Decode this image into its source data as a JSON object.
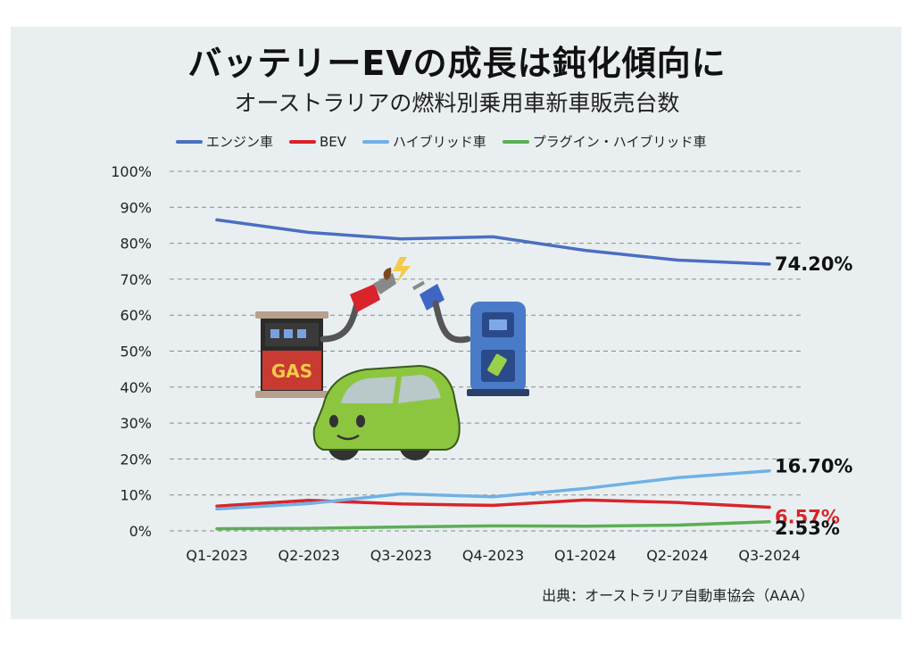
{
  "title": "バッテリーEVの成長は鈍化傾向に",
  "subtitle": "オーストラリアの燃料別乗用車新車販売台数",
  "source": "出典：オーストラリア自動車協会（AAA）",
  "illustration": {
    "gas_pump_label": "GAS"
  },
  "chart_data": {
    "type": "line",
    "categories": [
      "Q1-2023",
      "Q2-2023",
      "Q3-2023",
      "Q4-2023",
      "Q1-2024",
      "Q2-2024",
      "Q3-2024"
    ],
    "ylim": [
      0,
      100
    ],
    "yticks": [
      "0%",
      "10%",
      "20%",
      "30%",
      "40%",
      "50%",
      "60%",
      "70%",
      "80%",
      "90%",
      "100%"
    ],
    "grid": true,
    "legend_position": "top",
    "series": [
      {
        "name": "エンジン車",
        "color": "#4a6fc1",
        "values": [
          86.5,
          83.0,
          81.2,
          81.8,
          78.0,
          75.3,
          74.2
        ],
        "end_label": "74.20%",
        "end_label_color": "#111111"
      },
      {
        "name": "BEV",
        "color": "#d9242b",
        "values": [
          6.9,
          8.5,
          7.5,
          7.1,
          8.6,
          7.9,
          6.57
        ],
        "end_label": "6.57%",
        "end_label_color": "#d9242b"
      },
      {
        "name": "ハイブリッド車",
        "color": "#6fb1e6",
        "values": [
          6.1,
          7.6,
          10.3,
          9.5,
          11.8,
          14.8,
          16.7
        ],
        "end_label": "16.70%",
        "end_label_color": "#111111"
      },
      {
        "name": "プラグイン・ハイブリッド車",
        "color": "#5cae55",
        "values": [
          0.6,
          0.7,
          1.1,
          1.4,
          1.3,
          1.6,
          2.53
        ],
        "end_label": "2.53%",
        "end_label_color": "#111111"
      }
    ]
  }
}
